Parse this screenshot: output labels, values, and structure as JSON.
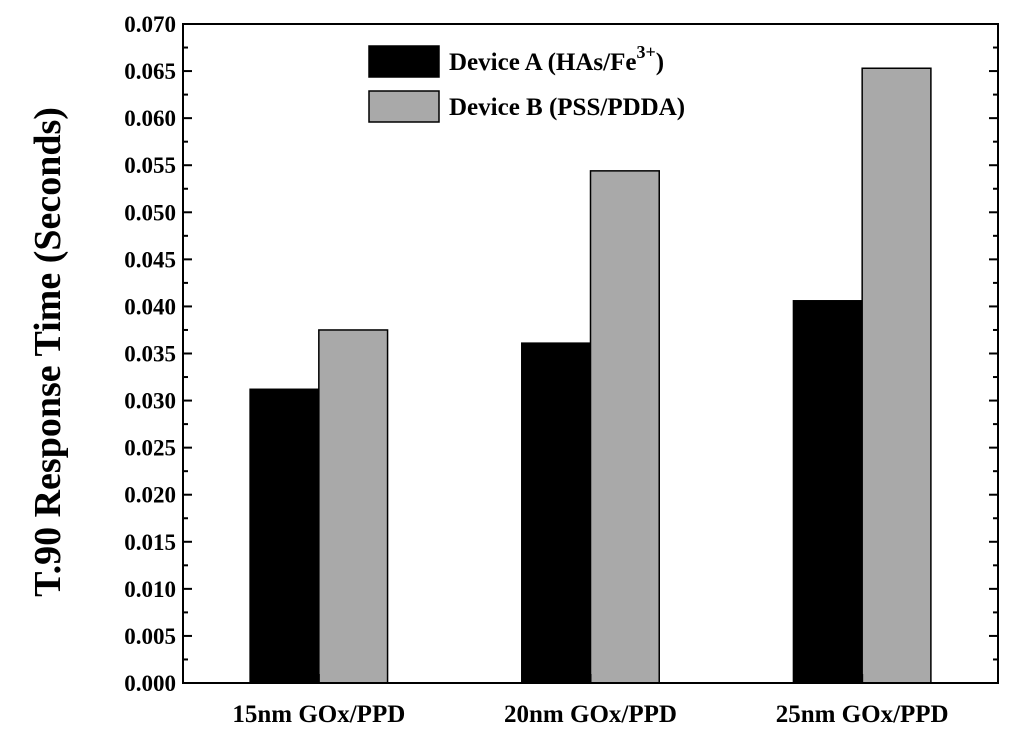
{
  "chart_data": {
    "type": "bar",
    "title": "",
    "xlabel": "",
    "ylabel": "T.90 Response Time (Seconds)",
    "categories": [
      "15nm GOx/PPD",
      "20nm GOx/PPD",
      "25nm GOx/PPD"
    ],
    "series": [
      {
        "name": "Device A (HAs/Fe",
        "superscript": "3+",
        "suffix": ")",
        "color": "#000000",
        "values": [
          0.0312,
          0.0361,
          0.0406
        ]
      },
      {
        "name": "Device B (PSS/PDDA)",
        "color": "#a9a9a9",
        "values": [
          0.0375,
          0.0544,
          0.0653
        ]
      }
    ],
    "ylim": [
      0.0,
      0.07
    ],
    "yticks": [
      "0.000",
      "0.005",
      "0.010",
      "0.015",
      "0.020",
      "0.025",
      "0.030",
      "0.035",
      "0.040",
      "0.045",
      "0.050",
      "0.055",
      "0.060",
      "0.065",
      "0.070"
    ],
    "grid": false,
    "legend_position": "top-center"
  }
}
